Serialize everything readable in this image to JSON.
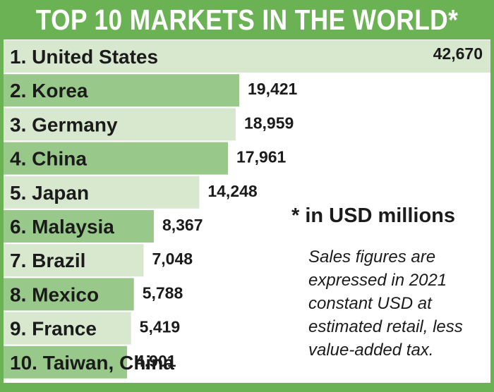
{
  "header": {
    "title": "TOP 10 MARKETS IN THE WORLD*"
  },
  "colors": {
    "frame": "#6bb254",
    "bar_dark": "#99c98a",
    "bar_light": "#d7e8cf",
    "text": "#1b1b1b"
  },
  "notes": {
    "unit": "* in USD millions",
    "description": "Sales figures are expressed in 2021 constant USD at estimated retail, less value-added tax."
  },
  "chart_data": {
    "type": "bar",
    "orientation": "horizontal",
    "categories": [
      "1. United States",
      "2. Korea",
      "3. Germany",
      "4. China",
      "5. Japan",
      "6. Malaysia",
      "7. Brazil",
      "8. Mexico",
      "9. France",
      "10. Taiwan, China"
    ],
    "value_labels": [
      "42,670",
      "19,421",
      "18,959",
      "17,961",
      "14,248",
      "8,367",
      "7,048",
      "5,788",
      "5,419",
      "4,901"
    ],
    "values": [
      42670,
      19421,
      18959,
      17961,
      14248,
      8367,
      7048,
      5788,
      5419,
      4901
    ],
    "title": "TOP 10 MARKETS IN THE WORLD*",
    "xlabel": "",
    "ylabel": "",
    "grid": false,
    "legend": "none"
  }
}
